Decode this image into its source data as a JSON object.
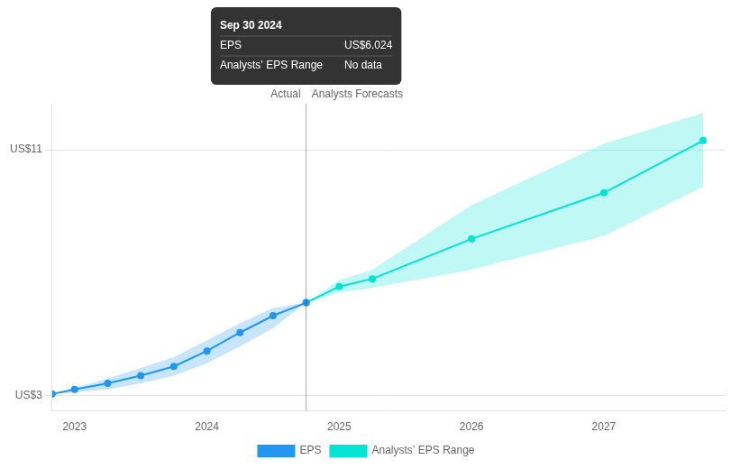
{
  "chart_data": {
    "type": "line",
    "xlim": [
      2022.83,
      2027.92
    ],
    "xticks": [
      2023,
      2024,
      2025,
      2026,
      2027
    ],
    "ylim": [
      2.5,
      12.5
    ],
    "yticks": [
      {
        "value": 3,
        "label": "US$3"
      },
      {
        "value": 11,
        "label": "US$11"
      }
    ],
    "grid": "y",
    "legend": "bottom",
    "marker": "circle",
    "series": [
      {
        "name": "EPS",
        "color": "#2196f3",
        "x": [
          2022.83,
          2023.0,
          2023.25,
          2023.5,
          2023.75,
          2024.0,
          2024.25,
          2024.5,
          2024.75
        ],
        "values": [
          3.05,
          3.2,
          3.4,
          3.65,
          3.95,
          4.45,
          5.05,
          5.6,
          6.024
        ],
        "upper": [
          3.05,
          3.25,
          3.55,
          3.9,
          4.25,
          4.8,
          5.35,
          5.85,
          6.024
        ],
        "lower": [
          3.05,
          3.1,
          3.2,
          3.4,
          3.65,
          4.05,
          4.6,
          5.2,
          6.024
        ]
      },
      {
        "name": "Analysts’ EPS Range",
        "color": "#00e5d4",
        "x": [
          2024.75,
          2025.0,
          2025.25,
          2026.0,
          2027.0,
          2027.75
        ],
        "values": [
          6.024,
          6.55,
          6.8,
          8.1,
          9.6,
          11.3
        ],
        "upper": [
          6.024,
          6.75,
          7.1,
          9.2,
          11.2,
          12.2
        ],
        "lower": [
          6.024,
          6.35,
          6.5,
          7.1,
          8.2,
          9.8
        ]
      }
    ],
    "annotations": [
      {
        "text": "Actual",
        "x": 2024.75,
        "side": "left"
      },
      {
        "text": "Analysts Forecasts",
        "x": 2024.75,
        "side": "right"
      },
      {
        "x": 2024.75,
        "y": 6.024,
        "rows": [
          [
            "Sep 30 2024"
          ],
          [
            "EPS",
            "US$6.024"
          ],
          [
            "Analysts’ EPS Range",
            "No data"
          ]
        ]
      }
    ]
  }
}
